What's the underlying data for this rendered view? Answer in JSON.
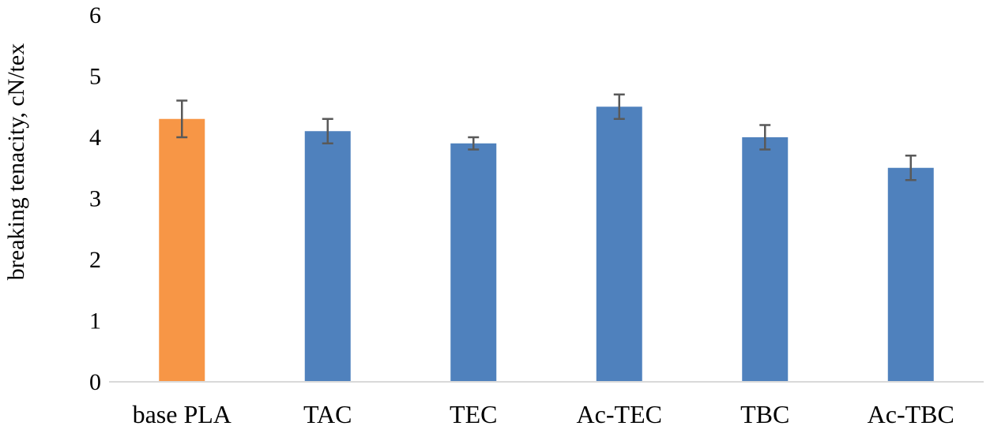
{
  "chart_data": {
    "type": "bar",
    "title": "",
    "xlabel": "",
    "ylabel": "breaking tenacity, cN/tex",
    "categories": [
      "base PLA",
      "TAC",
      "TEC",
      "Ac-TEC",
      "TBC",
      "Ac-TBC"
    ],
    "values": [
      4.3,
      4.1,
      3.9,
      4.5,
      4.0,
      3.5
    ],
    "error": [
      0.3,
      0.2,
      0.1,
      0.2,
      0.2,
      0.2
    ],
    "colors": [
      "#F79646",
      "#4F81BD",
      "#4F81BD",
      "#4F81BD",
      "#4F81BD",
      "#4F81BD"
    ],
    "error_bar_color": "#595959",
    "axis_color": "#d9d9d9",
    "ylim": [
      0,
      6
    ],
    "yticks": [
      "0",
      "1",
      "2",
      "3",
      "4",
      "5",
      "6"
    ],
    "grid": false,
    "legend": "none"
  }
}
